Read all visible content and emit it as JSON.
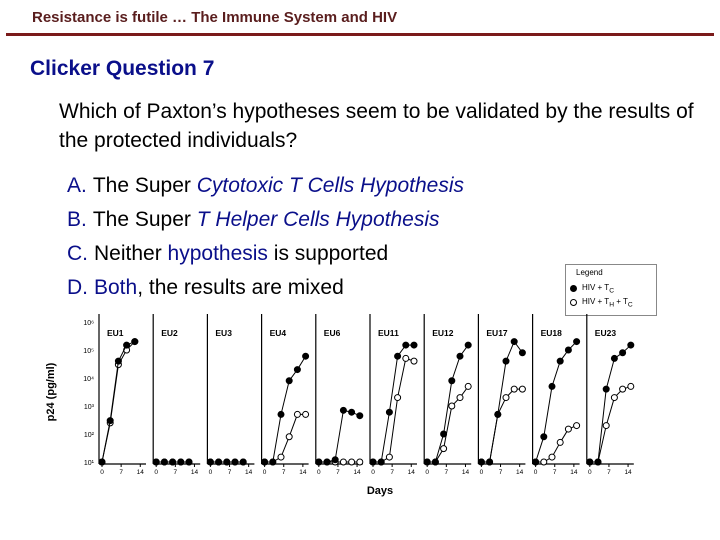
{
  "header": {
    "title": "Resistance is futile … The Immune System and HIV"
  },
  "slide": {
    "title": "Clicker Question 7",
    "question": "Which of Paxton’s hypotheses seem to be validated by the results of the protected individuals?",
    "options": {
      "a": {
        "letter": "A.",
        "pre": "The Super ",
        "hl": "Cytotoxic T Cells Hypothesis",
        "post": ""
      },
      "b": {
        "letter": "B.",
        "pre": "The Super ",
        "hl": "T Helper Cells Hypothesis",
        "post": ""
      },
      "c": {
        "letter": "C.",
        "pre": "Neither ",
        "hl": "hypothesis",
        "post": " is supported"
      },
      "d": {
        "letter": "D.",
        "pre": "",
        "hl": "Both",
        "post": ", the results are mixed"
      }
    }
  },
  "legend": {
    "title": "Legend",
    "series1": "HIV + T",
    "series1_sub": "C",
    "series2": "HIV + T",
    "series2_sub": "H",
    "series2_tail": " + T",
    "series2_tail_sub": "C"
  },
  "colors": {
    "accent": "#0a0f8a",
    "header": "#5a1e1e",
    "rule": "#7a1a1a"
  },
  "chart_data": {
    "type": "line",
    "ylabel": "p24 (pg/ml)",
    "xlabel": "Days",
    "yscale": "log",
    "yticks": [
      "10⁶",
      "10⁵",
      "10⁴",
      "10³",
      "10²",
      "10¹"
    ],
    "xticks": [
      "0",
      "7",
      "14"
    ],
    "panels": [
      {
        "name": "EU1",
        "filled": [
          [
            0,
            10
          ],
          [
            3,
            300
          ],
          [
            6,
            40000
          ],
          [
            9,
            150000
          ],
          [
            12,
            200000
          ]
        ],
        "open": [
          [
            0,
            10
          ],
          [
            3,
            250
          ],
          [
            6,
            30000
          ],
          [
            9,
            100000
          ],
          [
            12,
            200000
          ]
        ]
      },
      {
        "name": "EU2",
        "filled": [
          [
            0,
            10
          ],
          [
            3,
            10
          ],
          [
            6,
            10
          ],
          [
            9,
            10
          ],
          [
            12,
            10
          ]
        ],
        "open": [
          [
            0,
            10
          ],
          [
            3,
            10
          ],
          [
            6,
            10
          ],
          [
            9,
            10
          ],
          [
            12,
            10
          ]
        ]
      },
      {
        "name": "EU3",
        "filled": [
          [
            0,
            10
          ],
          [
            3,
            10
          ],
          [
            6,
            10
          ],
          [
            9,
            10
          ],
          [
            12,
            10
          ]
        ],
        "open": [
          [
            0,
            10
          ],
          [
            3,
            10
          ],
          [
            6,
            10
          ],
          [
            9,
            10
          ],
          [
            12,
            10
          ]
        ]
      },
      {
        "name": "EU4",
        "filled": [
          [
            0,
            10
          ],
          [
            3,
            10
          ],
          [
            6,
            500
          ],
          [
            9,
            8000
          ],
          [
            12,
            20000
          ],
          [
            15,
            60000
          ]
        ],
        "open": [
          [
            0,
            10
          ],
          [
            3,
            10
          ],
          [
            6,
            15
          ],
          [
            9,
            80
          ],
          [
            12,
            500
          ],
          [
            15,
            500
          ]
        ]
      },
      {
        "name": "EU6",
        "filled": [
          [
            0,
            10
          ],
          [
            3,
            10
          ],
          [
            6,
            12
          ],
          [
            9,
            700
          ],
          [
            12,
            600
          ],
          [
            15,
            450
          ]
        ],
        "open": [
          [
            0,
            10
          ],
          [
            3,
            10
          ],
          [
            6,
            10
          ],
          [
            9,
            10
          ],
          [
            12,
            10
          ],
          [
            15,
            10
          ]
        ]
      },
      {
        "name": "EU11",
        "filled": [
          [
            0,
            10
          ],
          [
            3,
            10
          ],
          [
            6,
            600
          ],
          [
            9,
            60000
          ],
          [
            12,
            150000
          ],
          [
            15,
            150000
          ]
        ],
        "open": [
          [
            0,
            10
          ],
          [
            3,
            10
          ],
          [
            6,
            15
          ],
          [
            9,
            2000
          ],
          [
            12,
            50000
          ],
          [
            15,
            40000
          ]
        ]
      },
      {
        "name": "EU12",
        "filled": [
          [
            0,
            10
          ],
          [
            3,
            10
          ],
          [
            6,
            100
          ],
          [
            9,
            8000
          ],
          [
            12,
            60000
          ],
          [
            15,
            150000
          ]
        ],
        "open": [
          [
            0,
            10
          ],
          [
            3,
            10
          ],
          [
            6,
            30
          ],
          [
            9,
            1000
          ],
          [
            12,
            2000
          ],
          [
            15,
            5000
          ]
        ]
      },
      {
        "name": "EU17",
        "filled": [
          [
            0,
            10
          ],
          [
            3,
            10
          ],
          [
            6,
            500
          ],
          [
            9,
            40000
          ],
          [
            12,
            200000
          ],
          [
            15,
            80000
          ]
        ],
        "open": [
          [
            0,
            10
          ],
          [
            3,
            10
          ],
          [
            6,
            500
          ],
          [
            9,
            2000
          ],
          [
            12,
            4000
          ],
          [
            15,
            4000
          ]
        ]
      },
      {
        "name": "EU18",
        "filled": [
          [
            0,
            10
          ],
          [
            3,
            80
          ],
          [
            6,
            5000
          ],
          [
            9,
            40000
          ],
          [
            12,
            100000
          ],
          [
            15,
            200000
          ]
        ],
        "open": [
          [
            0,
            10
          ],
          [
            3,
            10
          ],
          [
            6,
            15
          ],
          [
            9,
            50
          ],
          [
            12,
            150
          ],
          [
            15,
            200
          ]
        ]
      },
      {
        "name": "EU23",
        "filled": [
          [
            0,
            10
          ],
          [
            3,
            10
          ],
          [
            6,
            4000
          ],
          [
            9,
            50000
          ],
          [
            12,
            80000
          ],
          [
            15,
            150000
          ]
        ],
        "open": [
          [
            0,
            10
          ],
          [
            3,
            10
          ],
          [
            6,
            200
          ],
          [
            9,
            2000
          ],
          [
            12,
            4000
          ],
          [
            15,
            5000
          ]
        ]
      }
    ]
  }
}
